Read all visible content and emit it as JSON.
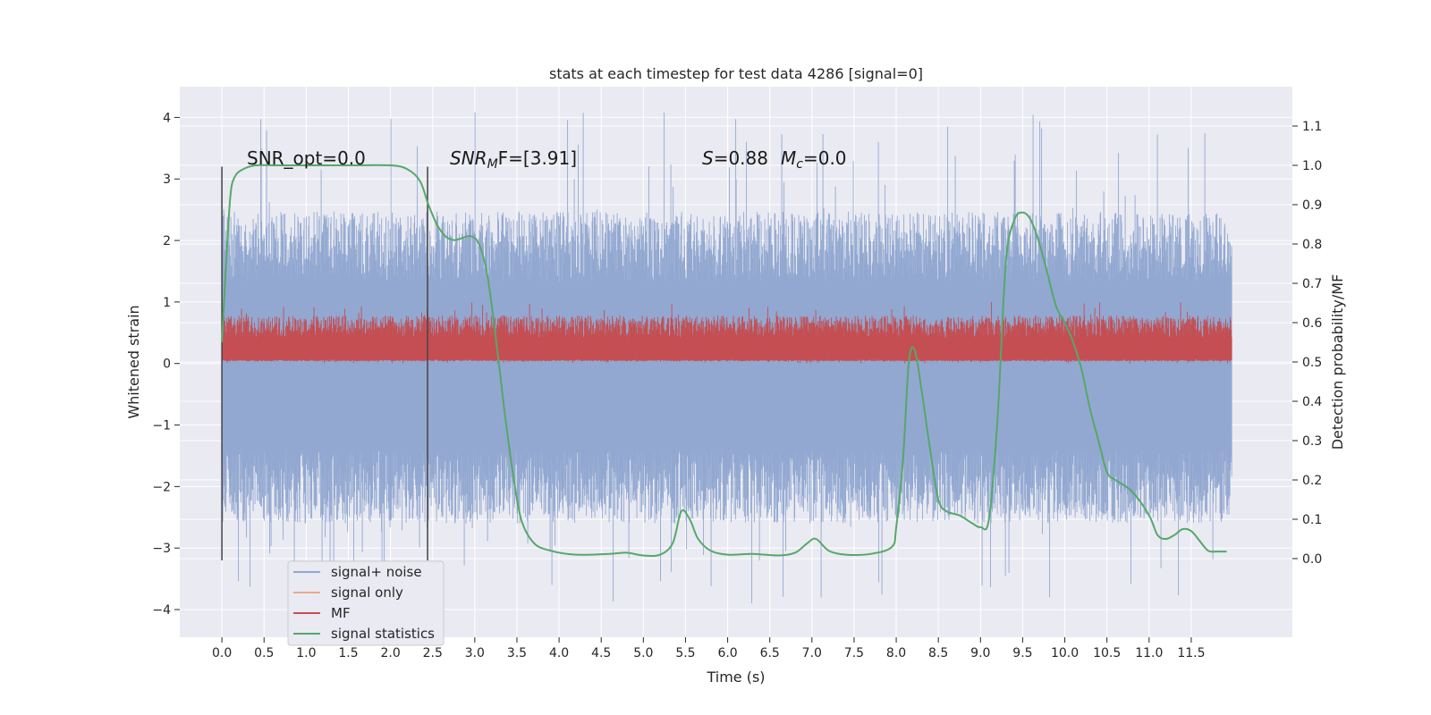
{
  "chart_data": {
    "type": "line",
    "title": "stats at each timestep for test data 4286 [signal=0]",
    "xlabel": "Time (s)",
    "ylabel": "Whitened strain",
    "y2label": "Detection probability/MF",
    "xlim": [
      -0.5,
      12.7
    ],
    "ylim": [
      -4.45,
      4.5
    ],
    "y2lim": [
      -0.2,
      1.2
    ],
    "xticks": [
      0.0,
      0.5,
      1.0,
      1.5,
      2.0,
      2.5,
      3.0,
      3.5,
      4.0,
      4.5,
      5.0,
      5.5,
      6.0,
      6.5,
      7.0,
      7.5,
      8.0,
      8.5,
      9.0,
      9.5,
      10.0,
      10.5,
      11.0,
      11.5
    ],
    "xtick_labels": [
      "0.0",
      "0.5",
      "1.0",
      "1.5",
      "2.0",
      "2.5",
      "3.0",
      "3.5",
      "4.0",
      "4.5",
      "5.0",
      "5.5",
      "6.0",
      "6.5",
      "7.0",
      "7.5",
      "8.0",
      "8.5",
      "9.0",
      "9.5",
      "10.0",
      "10.5",
      "11.0",
      "11.5"
    ],
    "yticks": [
      -4,
      -3,
      -2,
      -1,
      0,
      1,
      2,
      3,
      4
    ],
    "ytick_labels": [
      "−4",
      "−3",
      "−2",
      "−1",
      "0",
      "1",
      "2",
      "3",
      "4"
    ],
    "y2ticks": [
      0.0,
      0.1,
      0.2,
      0.3,
      0.4,
      0.5,
      0.6,
      0.7,
      0.8,
      0.9,
      1.0,
      1.1
    ],
    "y2tick_labels": [
      "0.0",
      "0.1",
      "0.2",
      "0.3",
      "0.4",
      "0.5",
      "0.6",
      "0.7",
      "0.8",
      "0.9",
      "1.0",
      "1.1"
    ],
    "grid": true,
    "legend_position": "bottom-left",
    "legend": [
      {
        "label": "signal+ noise",
        "color": "#92a8d1"
      },
      {
        "label": "signal only",
        "color": "#e8a98f"
      },
      {
        "label": "MF",
        "color": "#c44e52"
      },
      {
        "label": "signal statistics",
        "color": "#55a868"
      }
    ],
    "annotations": {
      "snr_opt": "SNR_opt=0.0",
      "snr_mf_prefix": "SNR",
      "snr_mf_sub": "M",
      "snr_mf_suffix": "F=[3.91]",
      "s_label": "S",
      "s_value": "=0.88",
      "mc_label": "M",
      "mc_sub": "c",
      "mc_value": "=0.0"
    },
    "vertical_markers": [
      0.0,
      2.44
    ],
    "vertical_marker_range": [
      -3.2,
      3.2
    ],
    "series": [
      {
        "name": "signal+ noise",
        "color": "#92a8d1",
        "t_range": [
          0.0,
          11.98
        ],
        "style": "noise",
        "level_low": -2.0,
        "level_high": 1.9,
        "peak_range": [
          -3.9,
          4.1
        ]
      },
      {
        "name": "MF",
        "color": "#c44e52",
        "t_range": [
          0.0,
          11.98
        ],
        "style": "noise",
        "level_low": 0.05,
        "level_high": 0.6,
        "peak_range": [
          0.0,
          1.0
        ]
      },
      {
        "name": "signal statistics",
        "color": "#55a868",
        "x": [
          0.0,
          0.05,
          0.1,
          0.15,
          0.25,
          0.4,
          0.6,
          1.0,
          1.5,
          2.0,
          2.2,
          2.35,
          2.45,
          2.55,
          2.65,
          2.75,
          2.85,
          2.95,
          3.05,
          3.15,
          3.25,
          3.35,
          3.45,
          3.55,
          3.7,
          3.9,
          4.2,
          4.6,
          4.8,
          5.0,
          5.2,
          5.35,
          5.45,
          5.55,
          5.65,
          5.8,
          6.0,
          6.3,
          6.6,
          6.8,
          6.95,
          7.05,
          7.2,
          7.4,
          7.7,
          7.95,
          8.0,
          8.08,
          8.15,
          8.22,
          8.3,
          8.4,
          8.5,
          8.6,
          8.75,
          8.9,
          9.0,
          9.1,
          9.2,
          9.3,
          9.4,
          9.5,
          9.6,
          9.7,
          9.8,
          9.9,
          10.0,
          10.1,
          10.2,
          10.3,
          10.4,
          10.5,
          10.6,
          10.8,
          11.0,
          11.1,
          11.2,
          11.3,
          11.4,
          11.5,
          11.6,
          11.7,
          11.8,
          11.92
        ],
        "values": [
          0.55,
          0.75,
          0.92,
          0.97,
          0.99,
          1.0,
          1.0,
          1.0,
          1.0,
          1.0,
          0.99,
          0.96,
          0.9,
          0.85,
          0.82,
          0.81,
          0.815,
          0.82,
          0.8,
          0.72,
          0.56,
          0.38,
          0.22,
          0.1,
          0.04,
          0.02,
          0.01,
          0.012,
          0.015,
          0.008,
          0.01,
          0.04,
          0.12,
          0.1,
          0.05,
          0.02,
          0.01,
          0.012,
          0.008,
          0.015,
          0.04,
          0.05,
          0.02,
          0.01,
          0.012,
          0.03,
          0.08,
          0.25,
          0.5,
          0.53,
          0.43,
          0.28,
          0.15,
          0.12,
          0.11,
          0.09,
          0.08,
          0.1,
          0.35,
          0.75,
          0.86,
          0.88,
          0.86,
          0.8,
          0.72,
          0.64,
          0.6,
          0.55,
          0.48,
          0.38,
          0.3,
          0.22,
          0.2,
          0.17,
          0.11,
          0.06,
          0.05,
          0.06,
          0.075,
          0.07,
          0.045,
          0.02,
          0.018,
          0.018
        ],
        "axis": "right"
      }
    ]
  }
}
